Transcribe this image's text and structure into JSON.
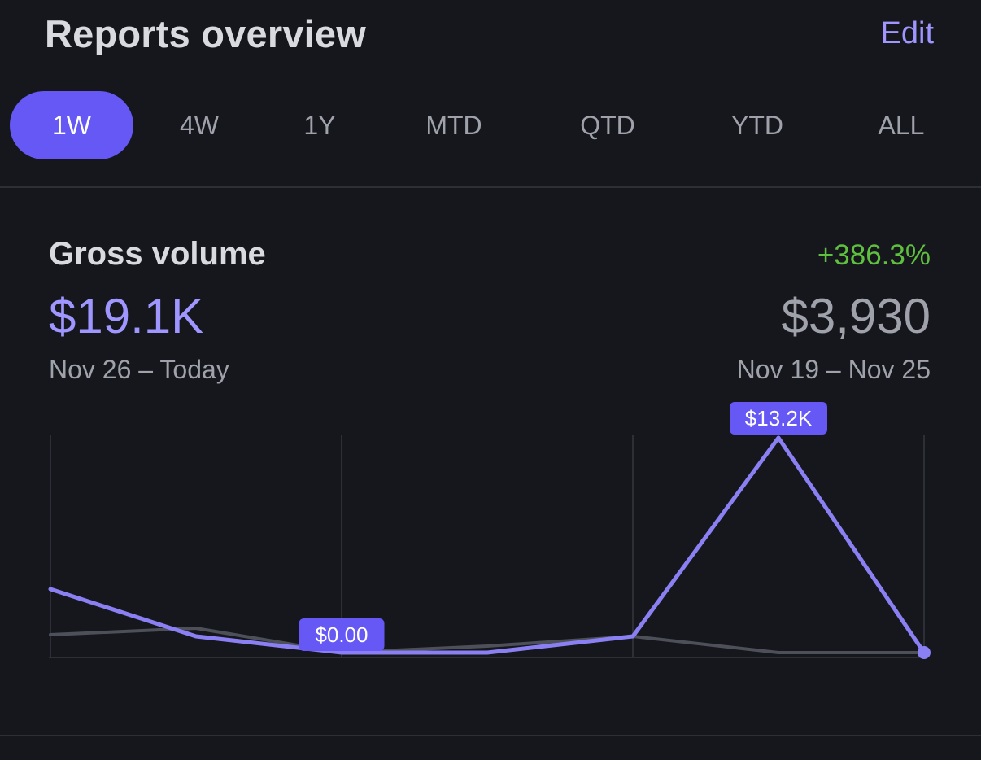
{
  "header": {
    "title": "Reports overview",
    "edit_label": "Edit"
  },
  "tabs": [
    {
      "label": "1W",
      "active": true
    },
    {
      "label": "4W",
      "active": false
    },
    {
      "label": "1Y",
      "active": false
    },
    {
      "label": "MTD",
      "active": false
    },
    {
      "label": "QTD",
      "active": false
    },
    {
      "label": "YTD",
      "active": false
    },
    {
      "label": "ALL",
      "active": false
    }
  ],
  "metric": {
    "title": "Gross volume",
    "change": "+386.3%",
    "value": "$19.1K",
    "range": "Nov 26 – Today",
    "previous_value": "$3,930",
    "previous_range": "Nov 19 – Nov 25"
  },
  "colors": {
    "accent": "#6558f5",
    "current_series": "#8b80f3",
    "previous_series": "#4d5058",
    "positive": "#5fbf3f"
  },
  "chart_data": {
    "type": "line",
    "x": [
      0,
      1,
      2,
      3,
      4,
      5,
      6
    ],
    "ylim": [
      0,
      13200
    ],
    "series": [
      {
        "values": [
          3900,
          1000,
          0,
          0,
          1000,
          13200,
          0
        ]
      },
      {
        "values": [
          1100,
          1500,
          0,
          400,
          1000,
          0,
          0
        ]
      }
    ],
    "annotations": [
      {
        "x": 2,
        "label": "$0.00"
      },
      {
        "x": 5,
        "label": "$13.2K"
      }
    ]
  }
}
